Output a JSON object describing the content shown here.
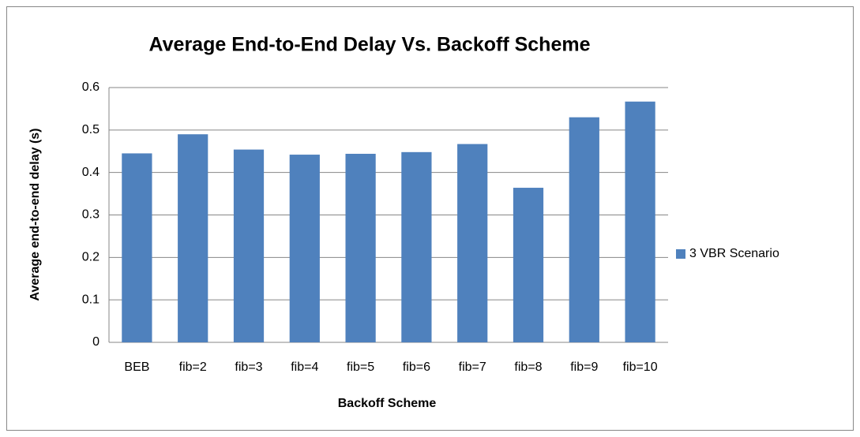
{
  "chart_data": {
    "type": "bar",
    "title": "Average End-to-End Delay Vs. Backoff Scheme",
    "x_label": "Backoff Scheme",
    "y_label": "Average end-to-end delay (s)",
    "categories": [
      "BEB",
      "fib=2",
      "fib=3",
      "fib=4",
      "fib=5",
      "fib=6",
      "fib=7",
      "fib=8",
      "fib=9",
      "fib=10"
    ],
    "series": [
      {
        "name": "3 VBR Scenario",
        "color": "#4f81bd",
        "values": [
          0.445,
          0.49,
          0.454,
          0.442,
          0.444,
          0.448,
          0.467,
          0.364,
          0.53,
          0.567
        ]
      }
    ],
    "ylim": [
      0,
      0.6
    ],
    "yticks": [
      0,
      0.1,
      0.2,
      0.3,
      0.4,
      0.5,
      0.6
    ],
    "grid": true,
    "legend": "right"
  }
}
